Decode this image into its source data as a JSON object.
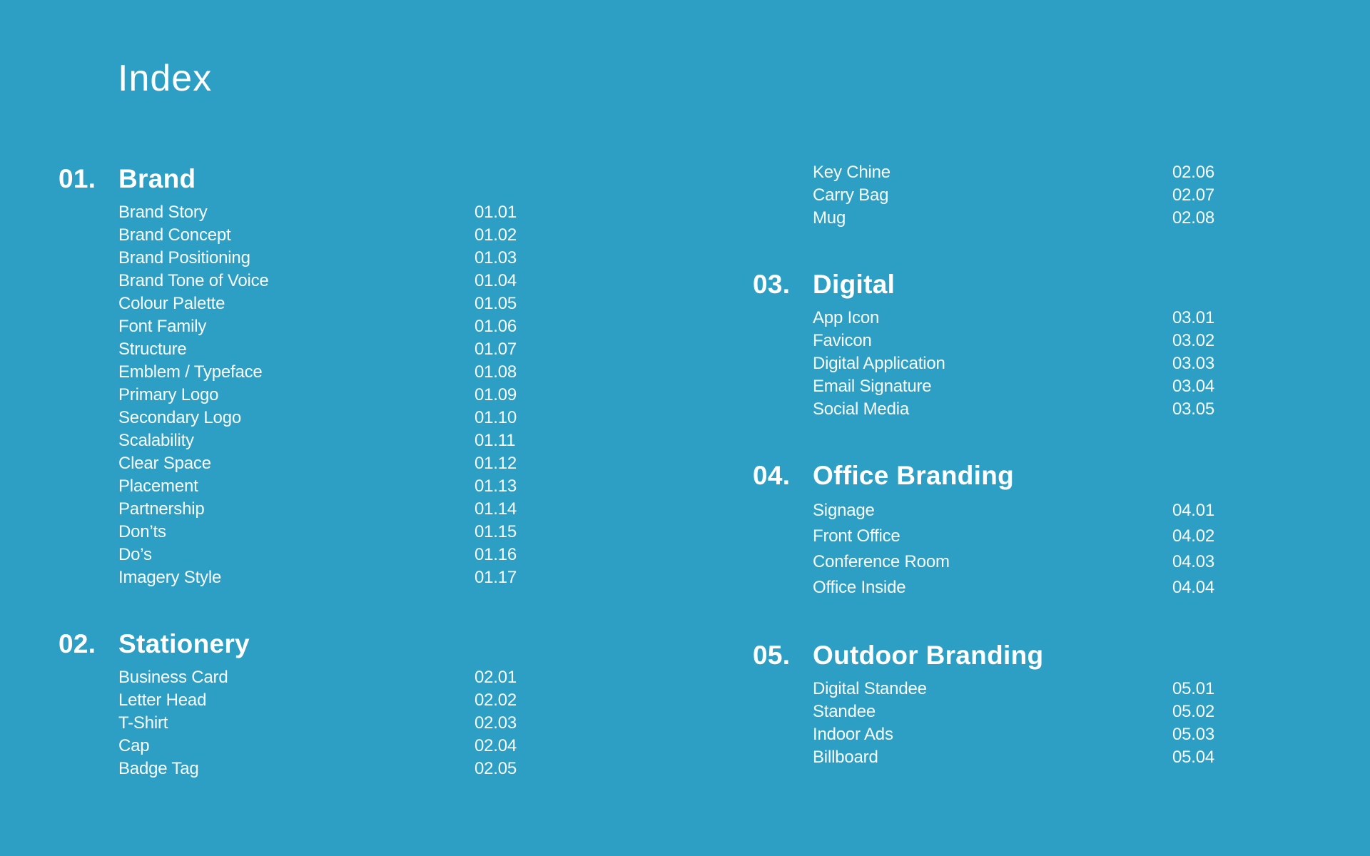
{
  "page": {
    "title": "Index",
    "background_color": "#2D9FC5",
    "text_color": "#FFFFFF"
  },
  "columns": {
    "left": [
      {
        "number": "01.",
        "title": "Brand",
        "items": [
          {
            "label": "Brand Story",
            "page": "01.01"
          },
          {
            "label": "Brand Concept",
            "page": "01.02"
          },
          {
            "label": "Brand Positioning",
            "page": "01.03"
          },
          {
            "label": "Brand Tone of Voice",
            "page": "01.04"
          },
          {
            "label": "Colour Palette",
            "page": "01.05"
          },
          {
            "label": "Font Family",
            "page": "01.06"
          },
          {
            "label": "Structure",
            "page": "01.07"
          },
          {
            "label": "Emblem / Typeface",
            "page": "01.08"
          },
          {
            "label": "Primary Logo",
            "page": "01.09"
          },
          {
            "label": "Secondary Logo",
            "page": "01.10"
          },
          {
            "label": "Scalability",
            "page": "01.11"
          },
          {
            "label": "Clear Space",
            "page": "01.12"
          },
          {
            "label": "Placement",
            "page": "01.13"
          },
          {
            "label": "Partnership",
            "page": "01.14"
          },
          {
            "label": "Don’ts",
            "page": "01.15"
          },
          {
            "label": "Do’s",
            "page": "01.16"
          },
          {
            "label": "Imagery Style",
            "page": "01.17"
          }
        ]
      },
      {
        "number": "02.",
        "title": "Stationery",
        "items": [
          {
            "label": "Business Card",
            "page": "02.01"
          },
          {
            "label": "Letter Head",
            "page": "02.02"
          },
          {
            "label": "T-Shirt",
            "page": "02.03"
          },
          {
            "label": "Cap",
            "page": "02.04"
          },
          {
            "label": "Badge Tag",
            "page": "02.05"
          }
        ]
      }
    ],
    "right": [
      {
        "number": "",
        "title": "",
        "items": [
          {
            "label": "Key Chine",
            "page": "02.06"
          },
          {
            "label": "Carry Bag",
            "page": "02.07"
          },
          {
            "label": "Mug",
            "page": "02.08"
          }
        ]
      },
      {
        "number": "03.",
        "title": "Digital",
        "items": [
          {
            "label": "App Icon",
            "page": "03.01"
          },
          {
            "label": "Favicon",
            "page": "03.02"
          },
          {
            "label": "Digital Application",
            "page": "03.03"
          },
          {
            "label": "Email Signature",
            "page": "03.04"
          },
          {
            "label": "Social Media",
            "page": "03.05"
          }
        ]
      },
      {
        "number": "04.",
        "title": "Office Branding",
        "row_pitch": 36,
        "items": [
          {
            "label": "Signage",
            "page": "04.01"
          },
          {
            "label": "Front Office",
            "page": "04.02"
          },
          {
            "label": "Conference Room",
            "page": "04.03"
          },
          {
            "label": "Office Inside",
            "page": "04.04"
          }
        ]
      },
      {
        "number": "05.",
        "title": "Outdoor Branding",
        "items": [
          {
            "label": "Digital Standee",
            "page": "05.01"
          },
          {
            "label": "Standee",
            "page": "05.02"
          },
          {
            "label": "Indoor Ads",
            "page": "05.03"
          },
          {
            "label": "Billboard",
            "page": "05.04"
          }
        ]
      }
    ]
  }
}
